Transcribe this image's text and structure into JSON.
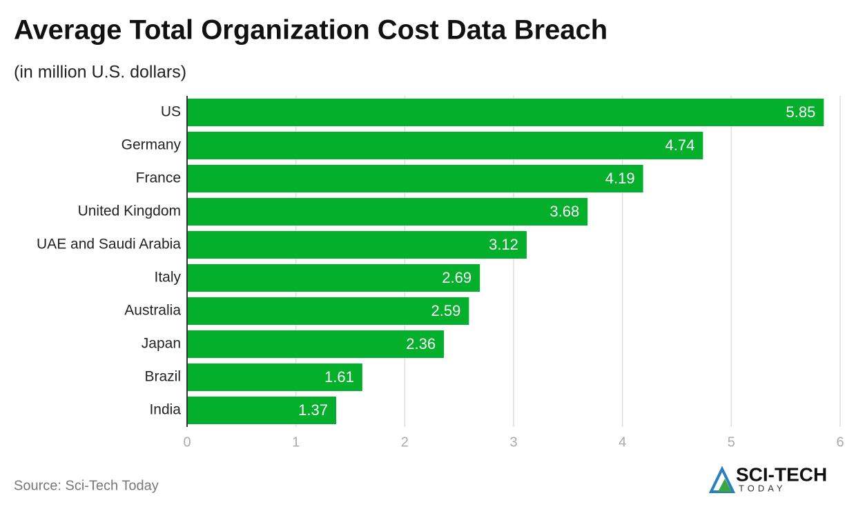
{
  "chart_data": {
    "type": "bar",
    "orientation": "horizontal",
    "title": "Average Total Organization Cost Data Breach",
    "subtitle": "(in million U.S. dollars)",
    "categories": [
      "US",
      "Germany",
      "France",
      "United Kingdom",
      "UAE and Saudi Arabia",
      "Italy",
      "Australia",
      "Japan",
      "Brazil",
      "India"
    ],
    "values": [
      5.85,
      4.74,
      4.19,
      3.68,
      3.12,
      2.69,
      2.59,
      2.36,
      1.61,
      1.37
    ],
    "color": "#03af2b",
    "xlim": [
      0,
      6
    ],
    "xticks": [
      0,
      1,
      2,
      3,
      4,
      5,
      6
    ],
    "grid": true,
    "source": "Source: Sci-Tech Today",
    "logo": {
      "name": "SCI-TECH",
      "tagline": "TODAY"
    }
  }
}
